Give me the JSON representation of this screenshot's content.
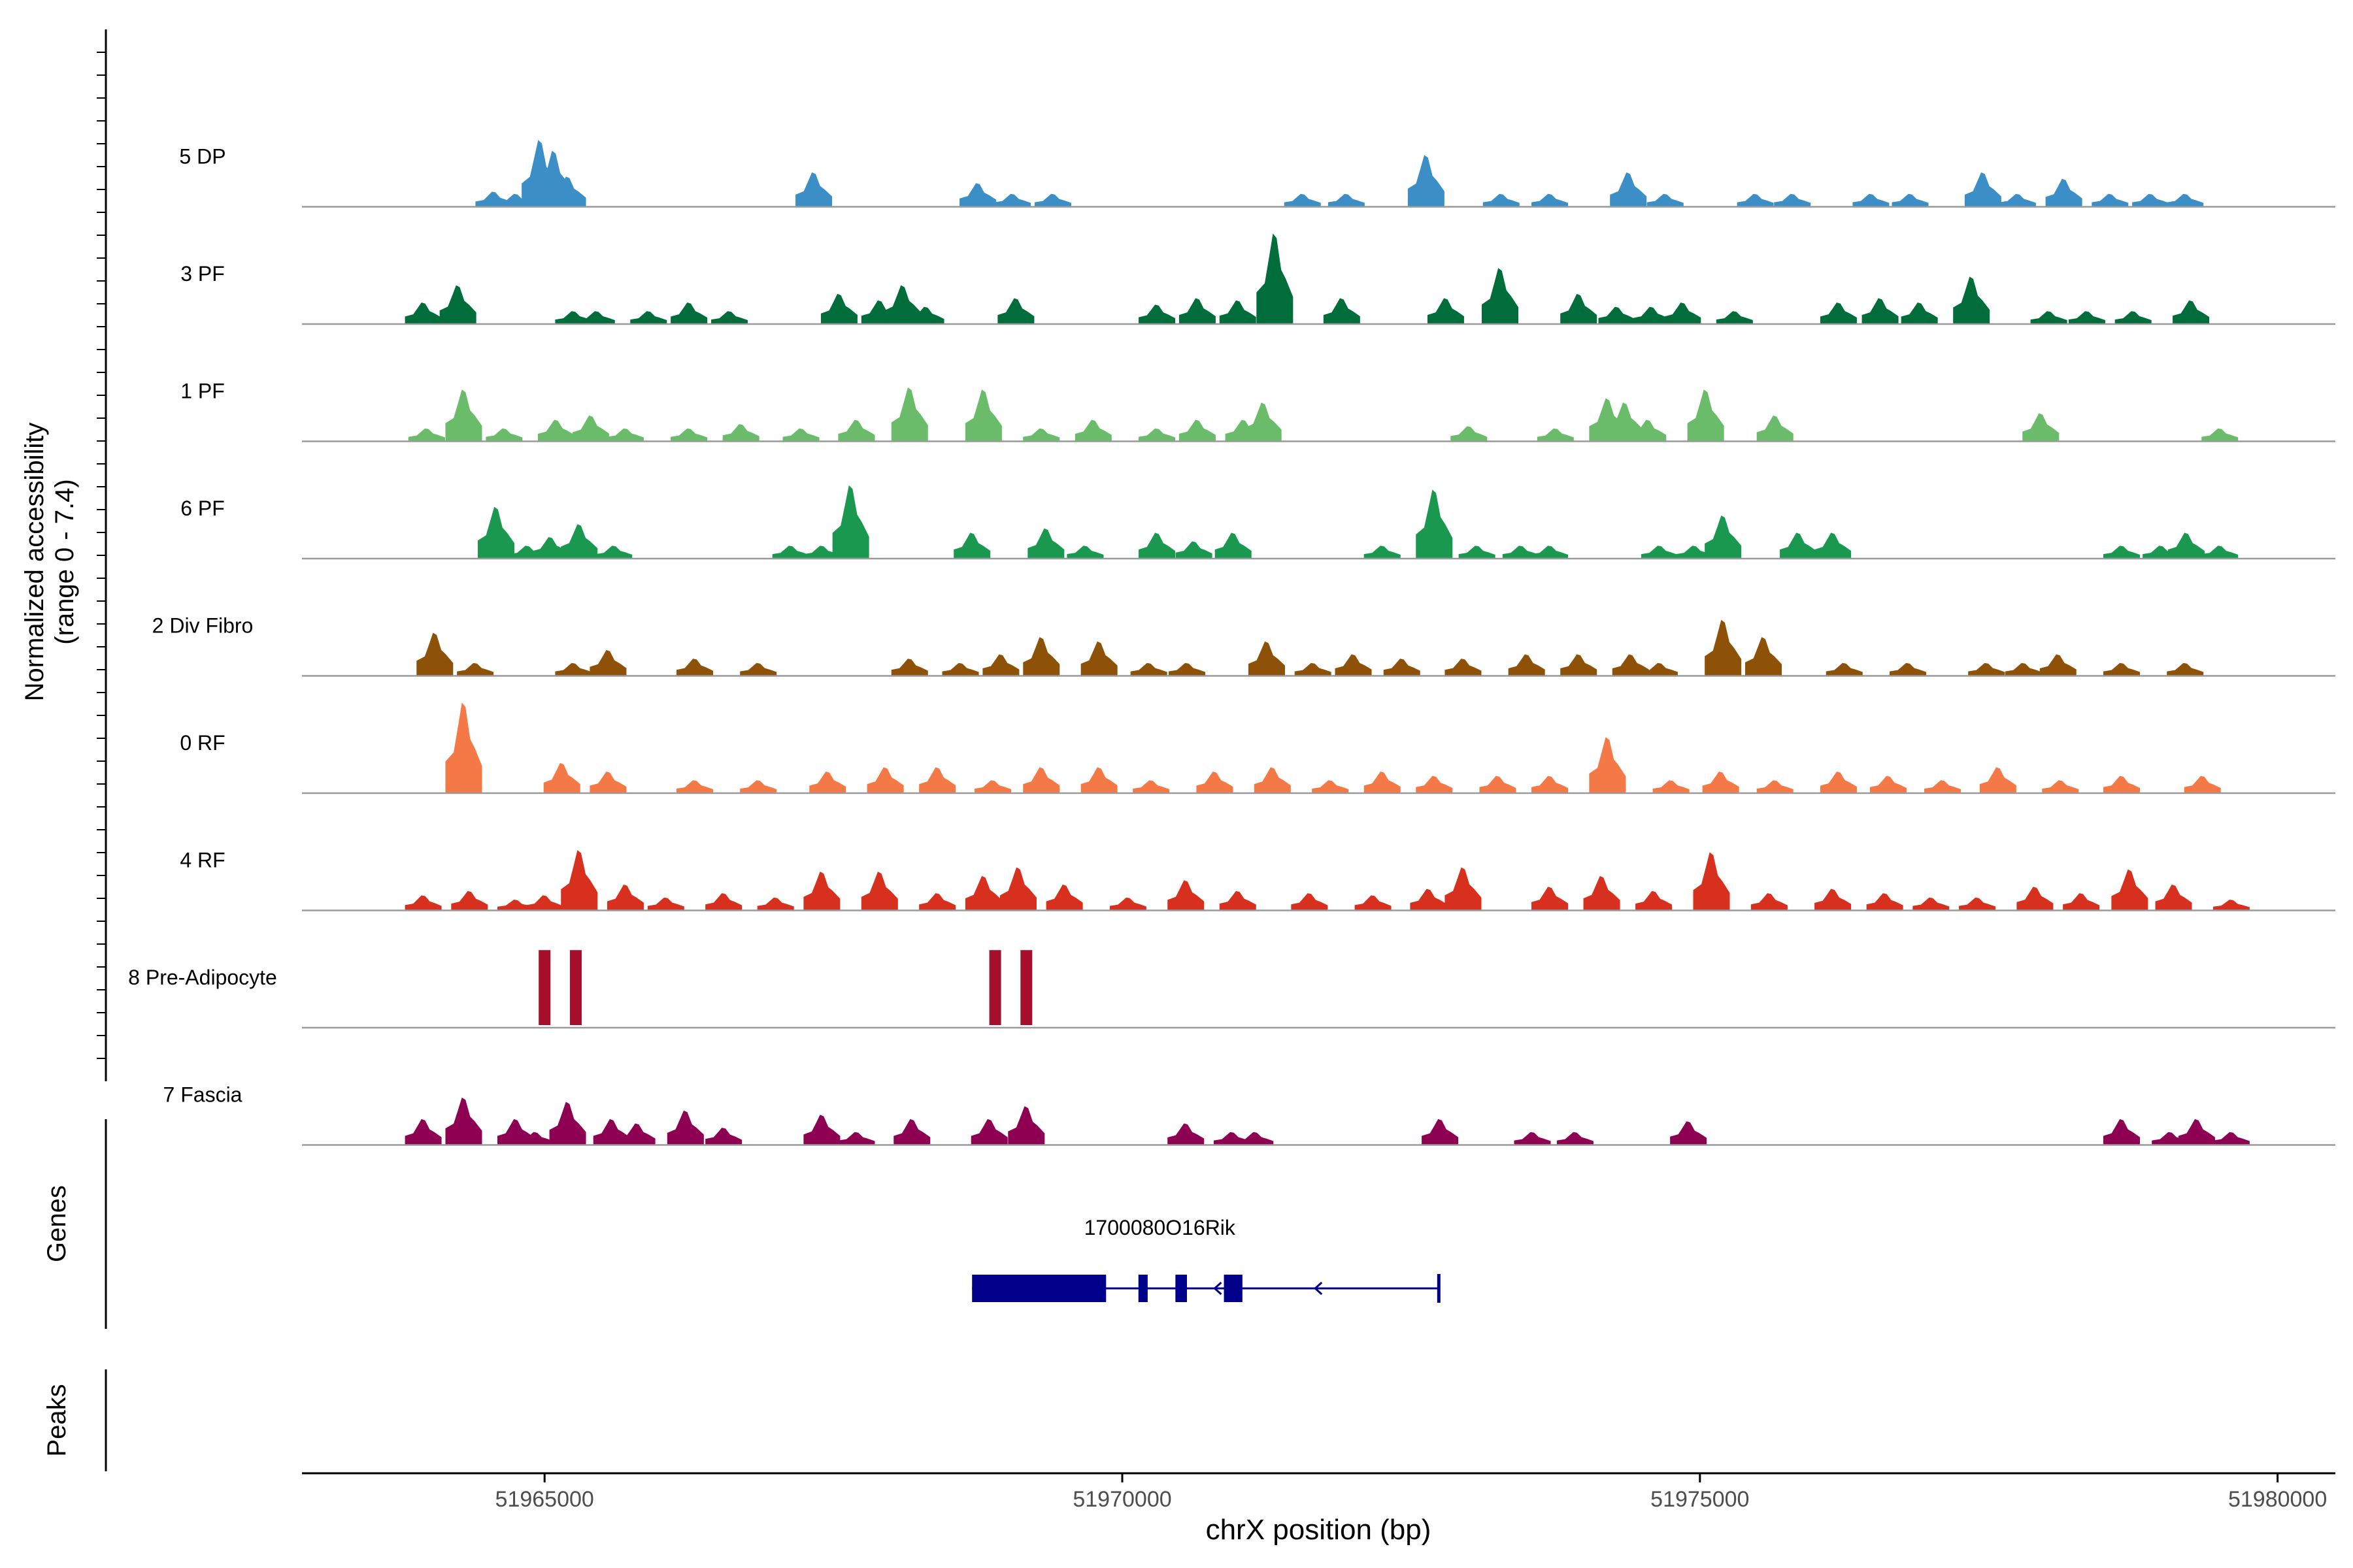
{
  "chart_data": {
    "type": "area",
    "title": "",
    "ylabel_line1": "Normalized accessibility",
    "ylabel_line2": "(range 0 - 7.4)",
    "y_range": [
      0,
      7.4
    ],
    "xlabel": "chrX position (bp)",
    "xlim": [
      51962900,
      51980500
    ],
    "x_ticks": [
      51965000,
      51970000,
      51975000,
      51980000
    ],
    "x_tick_labels": [
      "51965000",
      "51970000",
      "51975000",
      "51980000"
    ],
    "genes_label": "Genes",
    "peaks_label": "Peaks",
    "tracks": [
      {
        "name": "5 DP",
        "color": "#3c8fc6",
        "peaks": [
          [
            51964560,
            0.35
          ],
          [
            51964750,
            0.3
          ],
          [
            51964960,
            1.55
          ],
          [
            51965080,
            1.3
          ],
          [
            51965200,
            0.7
          ],
          [
            51967330,
            0.8
          ],
          [
            51968750,
            0.55
          ],
          [
            51969050,
            0.3
          ],
          [
            51969400,
            0.3
          ],
          [
            51971560,
            0.3
          ],
          [
            51971940,
            0.3
          ],
          [
            51972630,
            1.2
          ],
          [
            51973280,
            0.3
          ],
          [
            51973700,
            0.3
          ],
          [
            51974380,
            0.8
          ],
          [
            51974700,
            0.3
          ],
          [
            51975480,
            0.3
          ],
          [
            51975800,
            0.3
          ],
          [
            51976480,
            0.3
          ],
          [
            51976820,
            0.3
          ],
          [
            51977450,
            0.8
          ],
          [
            51977750,
            0.3
          ],
          [
            51978150,
            0.65
          ],
          [
            51978550,
            0.3
          ],
          [
            51978900,
            0.3
          ],
          [
            51979200,
            0.3
          ]
        ]
      },
      {
        "name": "3 PF",
        "color": "#006d3b",
        "peaks": [
          [
            51963950,
            0.5
          ],
          [
            51964250,
            0.9
          ],
          [
            51965250,
            0.3
          ],
          [
            51965450,
            0.3
          ],
          [
            51965900,
            0.3
          ],
          [
            51966250,
            0.5
          ],
          [
            51966600,
            0.3
          ],
          [
            51967550,
            0.7
          ],
          [
            51967900,
            0.55
          ],
          [
            51968100,
            0.9
          ],
          [
            51968300,
            0.4
          ],
          [
            51969080,
            0.6
          ],
          [
            51970300,
            0.45
          ],
          [
            51970650,
            0.6
          ],
          [
            51971000,
            0.55
          ],
          [
            51971320,
            2.1
          ],
          [
            51971900,
            0.6
          ],
          [
            51972800,
            0.6
          ],
          [
            51973270,
            1.3
          ],
          [
            51973950,
            0.7
          ],
          [
            51974280,
            0.4
          ],
          [
            51974580,
            0.4
          ],
          [
            51974850,
            0.5
          ],
          [
            51975300,
            0.3
          ],
          [
            51976200,
            0.5
          ],
          [
            51976560,
            0.6
          ],
          [
            51976900,
            0.5
          ],
          [
            51977350,
            1.1
          ],
          [
            51978020,
            0.3
          ],
          [
            51978350,
            0.3
          ],
          [
            51978750,
            0.3
          ],
          [
            51979250,
            0.55
          ]
        ]
      },
      {
        "name": "1 PF",
        "color": "#6abc6a",
        "peaks": [
          [
            51963980,
            0.3
          ],
          [
            51964300,
            1.2
          ],
          [
            51964650,
            0.3
          ],
          [
            51965100,
            0.5
          ],
          [
            51965400,
            0.6
          ],
          [
            51965700,
            0.3
          ],
          [
            51966250,
            0.3
          ],
          [
            51966700,
            0.4
          ],
          [
            51967220,
            0.3
          ],
          [
            51967700,
            0.5
          ],
          [
            51968160,
            1.25
          ],
          [
            51968800,
            1.2
          ],
          [
            51969300,
            0.3
          ],
          [
            51969750,
            0.5
          ],
          [
            51970300,
            0.3
          ],
          [
            51970650,
            0.5
          ],
          [
            51971050,
            0.5
          ],
          [
            51971220,
            0.9
          ],
          [
            51973000,
            0.35
          ],
          [
            51973750,
            0.3
          ],
          [
            51974200,
            1.0
          ],
          [
            51974350,
            0.9
          ],
          [
            51974550,
            0.5
          ],
          [
            51975050,
            1.2
          ],
          [
            51975650,
            0.6
          ],
          [
            51977950,
            0.65
          ],
          [
            51979500,
            0.3
          ]
        ]
      },
      {
        "name": "6 PF",
        "color": "#1b9850",
        "peaks": [
          [
            51964580,
            1.2
          ],
          [
            51964850,
            0.3
          ],
          [
            51965050,
            0.5
          ],
          [
            51965300,
            0.8
          ],
          [
            51965600,
            0.3
          ],
          [
            51967130,
            0.3
          ],
          [
            51967400,
            0.3
          ],
          [
            51967650,
            1.7
          ],
          [
            51968700,
            0.6
          ],
          [
            51969340,
            0.7
          ],
          [
            51969680,
            0.3
          ],
          [
            51970300,
            0.6
          ],
          [
            51970620,
            0.4
          ],
          [
            51970960,
            0.6
          ],
          [
            51972250,
            0.3
          ],
          [
            51972700,
            1.6
          ],
          [
            51973070,
            0.3
          ],
          [
            51973450,
            0.3
          ],
          [
            51973700,
            0.3
          ],
          [
            51974650,
            0.3
          ],
          [
            51974950,
            0.3
          ],
          [
            51975200,
            1.0
          ],
          [
            51975850,
            0.6
          ],
          [
            51976150,
            0.6
          ],
          [
            51978650,
            0.3
          ],
          [
            51978990,
            0.3
          ],
          [
            51979210,
            0.6
          ],
          [
            51979500,
            0.3
          ]
        ]
      },
      {
        "name": "2 Div Fibro",
        "color": "#8d5108",
        "peaks": [
          [
            51964050,
            1.0
          ],
          [
            51964400,
            0.3
          ],
          [
            51965250,
            0.3
          ],
          [
            51965550,
            0.6
          ],
          [
            51966300,
            0.4
          ],
          [
            51966850,
            0.3
          ],
          [
            51968160,
            0.4
          ],
          [
            51968600,
            0.3
          ],
          [
            51968950,
            0.5
          ],
          [
            51969300,
            0.9
          ],
          [
            51969800,
            0.8
          ],
          [
            51970230,
            0.3
          ],
          [
            51970560,
            0.3
          ],
          [
            51971250,
            0.8
          ],
          [
            51971650,
            0.3
          ],
          [
            51972000,
            0.5
          ],
          [
            51972420,
            0.4
          ],
          [
            51972950,
            0.4
          ],
          [
            51973500,
            0.5
          ],
          [
            51973950,
            0.5
          ],
          [
            51974400,
            0.5
          ],
          [
            51974650,
            0.3
          ],
          [
            51975200,
            1.3
          ],
          [
            51975550,
            0.9
          ],
          [
            51976250,
            0.3
          ],
          [
            51976800,
            0.3
          ],
          [
            51977480,
            0.3
          ],
          [
            51977800,
            0.3
          ],
          [
            51978100,
            0.5
          ],
          [
            51978650,
            0.3
          ],
          [
            51979200,
            0.3
          ]
        ]
      },
      {
        "name": "0 RF",
        "color": "#f47947",
        "peaks": [
          [
            51964300,
            2.1
          ],
          [
            51965150,
            0.7
          ],
          [
            51965550,
            0.5
          ],
          [
            51966300,
            0.3
          ],
          [
            51966850,
            0.3
          ],
          [
            51967450,
            0.5
          ],
          [
            51967950,
            0.6
          ],
          [
            51968400,
            0.6
          ],
          [
            51968880,
            0.3
          ],
          [
            51969300,
            0.6
          ],
          [
            51969800,
            0.6
          ],
          [
            51970250,
            0.3
          ],
          [
            51970800,
            0.5
          ],
          [
            51971300,
            0.6
          ],
          [
            51971800,
            0.3
          ],
          [
            51972250,
            0.5
          ],
          [
            51972700,
            0.4
          ],
          [
            51973250,
            0.4
          ],
          [
            51973700,
            0.4
          ],
          [
            51974200,
            1.3
          ],
          [
            51974750,
            0.3
          ],
          [
            51975180,
            0.5
          ],
          [
            51975650,
            0.3
          ],
          [
            51976200,
            0.5
          ],
          [
            51976630,
            0.4
          ],
          [
            51977100,
            0.3
          ],
          [
            51977580,
            0.6
          ],
          [
            51978120,
            0.3
          ],
          [
            51978650,
            0.4
          ],
          [
            51979350,
            0.4
          ]
        ]
      },
      {
        "name": "4 RF",
        "color": "#d7301f",
        "peaks": [
          [
            51963950,
            0.35
          ],
          [
            51964350,
            0.45
          ],
          [
            51964750,
            0.25
          ],
          [
            51965000,
            0.35
          ],
          [
            51965300,
            1.4
          ],
          [
            51965700,
            0.6
          ],
          [
            51966050,
            0.3
          ],
          [
            51966550,
            0.4
          ],
          [
            51967000,
            0.3
          ],
          [
            51967400,
            0.9
          ],
          [
            51967900,
            0.9
          ],
          [
            51968400,
            0.4
          ],
          [
            51968800,
            0.8
          ],
          [
            51969100,
            1.0
          ],
          [
            51969500,
            0.6
          ],
          [
            51970050,
            0.3
          ],
          [
            51970550,
            0.7
          ],
          [
            51971000,
            0.45
          ],
          [
            51971620,
            0.4
          ],
          [
            51972170,
            0.35
          ],
          [
            51972650,
            0.5
          ],
          [
            51972950,
            1.0
          ],
          [
            51973700,
            0.55
          ],
          [
            51974150,
            0.8
          ],
          [
            51974600,
            0.45
          ],
          [
            51975100,
            1.35
          ],
          [
            51975600,
            0.4
          ],
          [
            51976150,
            0.5
          ],
          [
            51976600,
            0.4
          ],
          [
            51977000,
            0.3
          ],
          [
            51977400,
            0.3
          ],
          [
            51977900,
            0.55
          ],
          [
            51978300,
            0.4
          ],
          [
            51978720,
            0.95
          ],
          [
            51979100,
            0.6
          ],
          [
            51979600,
            0.25
          ]
        ]
      },
      {
        "name": "8 Pre-Adipocyte",
        "color": "#a50f2c",
        "style": "bars",
        "peaks": [
          [
            51965000,
            1.8
          ],
          [
            51965270,
            1.8
          ],
          [
            51968900,
            1.8
          ],
          [
            51969170,
            1.8
          ]
        ]
      },
      {
        "name": "7 Fascia",
        "color": "#8e0152",
        "peaks": [
          [
            51963950,
            0.6
          ],
          [
            51964300,
            1.1
          ],
          [
            51964750,
            0.6
          ],
          [
            51964920,
            0.3
          ],
          [
            51965200,
            1.0
          ],
          [
            51965580,
            0.6
          ],
          [
            51965800,
            0.5
          ],
          [
            51966220,
            0.8
          ],
          [
            51966550,
            0.4
          ],
          [
            51967400,
            0.7
          ],
          [
            51967700,
            0.3
          ],
          [
            51968180,
            0.6
          ],
          [
            51968850,
            0.6
          ],
          [
            51969170,
            0.9
          ],
          [
            51970550,
            0.5
          ],
          [
            51970950,
            0.3
          ],
          [
            51971150,
            0.3
          ],
          [
            51972750,
            0.6
          ],
          [
            51973550,
            0.3
          ],
          [
            51973920,
            0.3
          ],
          [
            51974900,
            0.55
          ],
          [
            51978650,
            0.6
          ],
          [
            51979070,
            0.3
          ],
          [
            51979300,
            0.6
          ],
          [
            51979600,
            0.3
          ]
        ]
      }
    ],
    "gene": {
      "name": "1700080O16Rik",
      "strand": "-",
      "start": 51968700,
      "end": 51972740,
      "exons": [
        [
          51968700,
          51969860
        ],
        [
          51970140,
          51970220
        ],
        [
          51970460,
          51970560
        ],
        [
          51970880,
          51971040
        ]
      ]
    }
  }
}
